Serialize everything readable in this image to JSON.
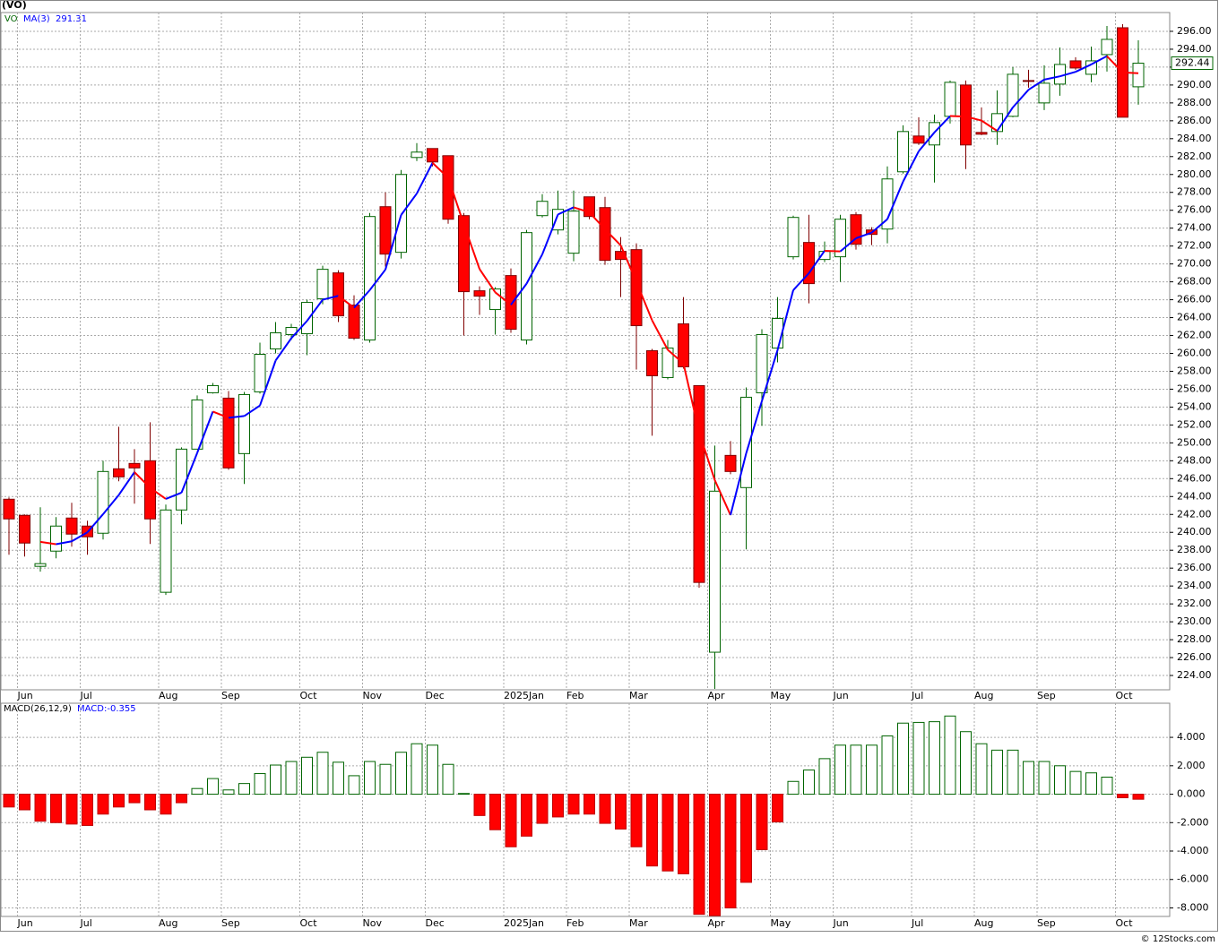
{
  "chart_data": [
    {
      "type": "candlestick",
      "title": "(VO)",
      "symbol": "VO",
      "categories": [
        null,
        "Jun",
        null,
        null,
        null,
        "Jul",
        null,
        null,
        null,
        null,
        "Aug",
        null,
        null,
        null,
        "Sep",
        null,
        null,
        null,
        null,
        "Oct",
        null,
        null,
        null,
        "Nov",
        null,
        null,
        null,
        "Dec",
        null,
        null,
        null,
        null,
        "2025Jan",
        null,
        null,
        null,
        "Feb",
        null,
        null,
        null,
        "Mar",
        null,
        null,
        null,
        null,
        "Apr",
        null,
        null,
        null,
        "May",
        null,
        null,
        null,
        "Jun",
        null,
        null,
        null,
        null,
        "Jul",
        null,
        null,
        null,
        "Aug",
        null,
        null,
        null,
        "Sep",
        null,
        null,
        null,
        null,
        "Oct",
        null
      ],
      "open": [
        243.7,
        241.9,
        236.2,
        237.9,
        241.6,
        240.7,
        239.9,
        247.1,
        247.7,
        248,
        233.3,
        242.5,
        249.3,
        255.6,
        255,
        248.8,
        255.7,
        260.5,
        262.1,
        262.2,
        266.1,
        269,
        265.4,
        261.5,
        276.4,
        271.3,
        281.9,
        282.9,
        282.1,
        275.4,
        267,
        264.9,
        268.7,
        261.5,
        275.4,
        273.8,
        271.2,
        277.5,
        276.3,
        271.4,
        271.6,
        260.3,
        257.3,
        263.3,
        256.4,
        226.6,
        248.6,
        245,
        255.6,
        260.6,
        270.8,
        272.4,
        270.5,
        270.8,
        275.5,
        273.8,
        273.9,
        280.3,
        284.3,
        283.3,
        286.5,
        290,
        284.7,
        284.8,
        286.5,
        290.5,
        288,
        290.1,
        292.7,
        291.2,
        293.4,
        296.4,
        289.8
      ],
      "high": [
        243.9,
        242,
        242.8,
        241.7,
        243.3,
        241.3,
        248,
        251.8,
        249.3,
        252.3,
        243.1,
        249.5,
        255.3,
        256.7,
        255.8,
        255.7,
        261.2,
        263.5,
        263.3,
        266,
        269.8,
        269.3,
        266.5,
        275.7,
        278,
        280.5,
        283.5,
        282.9,
        282.1,
        275.7,
        267.5,
        267.4,
        269.5,
        273.8,
        277.8,
        278.2,
        278.2,
        277.5,
        277.5,
        273,
        272.3,
        260.5,
        261.5,
        266.3,
        256.4,
        249.7,
        250.2,
        256.2,
        262.7,
        266.3,
        275.4,
        275.5,
        272.5,
        275.5,
        275.8,
        274.1,
        280.9,
        285.5,
        286.4,
        286.7,
        290.5,
        290.5,
        287.5,
        289.4,
        292,
        291.7,
        292.2,
        294.2,
        293.1,
        294.3,
        296.6,
        296.8,
        295
      ],
      "low": [
        237.5,
        237.3,
        235.6,
        237.1,
        238.4,
        237.5,
        239.2,
        245.7,
        243.2,
        238.7,
        233,
        240.9,
        249.3,
        255.5,
        247,
        245.4,
        255.5,
        260,
        261.5,
        259.8,
        265.5,
        263.5,
        261.5,
        261.2,
        269.7,
        270.6,
        281.5,
        280.9,
        274.5,
        262,
        264.3,
        262.1,
        262.3,
        261,
        275.2,
        273.3,
        270.3,
        275,
        269.9,
        266.3,
        258.2,
        250.8,
        257.1,
        258.3,
        233.8,
        222.5,
        246.5,
        238.1,
        251.9,
        259,
        270.5,
        265.6,
        270.2,
        268,
        271.6,
        272.1,
        272.3,
        280.1,
        283.3,
        279.1,
        285.7,
        280.6,
        284.4,
        283.3,
        286.4,
        289.7,
        287.2,
        288.8,
        291.7,
        290.3,
        291.5,
        286.4,
        287.8
      ],
      "close": [
        241.5,
        238.8,
        236.5,
        240.7,
        239.8,
        239.5,
        246.8,
        246.2,
        247.2,
        241.5,
        242.5,
        249.3,
        254.8,
        256.4,
        247.2,
        255.4,
        259.9,
        262.3,
        262.9,
        265.7,
        269.4,
        264.2,
        261.7,
        275.3,
        271.1,
        280,
        282.5,
        281.4,
        275,
        266.9,
        266.4,
        267.2,
        262.7,
        273.5,
        277,
        276.1,
        275.9,
        275.3,
        270.4,
        270.5,
        263.1,
        257.5,
        260.6,
        258.5,
        234.4,
        244.6,
        246.8,
        255.1,
        262.1,
        263.9,
        275.2,
        267.8,
        271.4,
        275,
        272.2,
        273.3,
        279.5,
        284.8,
        283.5,
        285.8,
        290.3,
        283.3,
        284.5,
        286.8,
        291.2,
        290.4,
        290.2,
        292.3,
        291.9,
        292.7,
        295.1,
        286.4,
        292.44
      ],
      "up_color": "#006400",
      "down_color": "#ff0000",
      "series": [
        {
          "name": "MA(3)",
          "up_color": "#0000ff",
          "down_color": "#ff0000",
          "values": [
            null,
            null,
            238.93,
            238.67,
            239,
            240,
            242.03,
            244.17,
            246.73,
            244.97,
            243.73,
            244.43,
            248.87,
            253.5,
            252.8,
            253,
            254.17,
            259.2,
            261.7,
            263.63,
            266,
            266.43,
            265.1,
            267.07,
            269.37,
            275.47,
            277.87,
            281.3,
            279.63,
            274.43,
            269.43,
            266.83,
            265.43,
            267.8,
            271.07,
            275.53,
            276.33,
            275.77,
            273.87,
            272.07,
            268,
            263.7,
            260.4,
            258.87,
            251.17,
            245.83,
            241.93,
            248.83,
            254.67,
            260.37,
            267.07,
            268.97,
            271.47,
            271.4,
            272.87,
            273.5,
            275,
            279.2,
            282.6,
            284.7,
            286.53,
            286.47,
            286.03,
            284.87,
            287.5,
            289.47,
            290.6,
            290.97,
            291.47,
            292.3,
            293.23,
            291.4,
            291.31
          ]
        }
      ],
      "ylim": [
        222.4,
        298.1
      ],
      "yticks": [
        {
          "value": 224,
          "label": "224.00"
        },
        {
          "value": 226,
          "label": "226.00"
        },
        {
          "value": 228,
          "label": "228.00"
        },
        {
          "value": 230,
          "label": "230.00"
        },
        {
          "value": 232,
          "label": "232.00"
        },
        {
          "value": 234,
          "label": "234.00"
        },
        {
          "value": 236,
          "label": "236.00"
        },
        {
          "value": 238,
          "label": "238.00"
        },
        {
          "value": 240,
          "label": "240.00"
        },
        {
          "value": 242,
          "label": "242.00"
        },
        {
          "value": 244,
          "label": "244.00"
        },
        {
          "value": 246,
          "label": "246.00"
        },
        {
          "value": 248,
          "label": "248.00"
        },
        {
          "value": 250,
          "label": "250.00"
        },
        {
          "value": 252,
          "label": "252.00"
        },
        {
          "value": 254,
          "label": "254.00"
        },
        {
          "value": 256,
          "label": "256.00"
        },
        {
          "value": 258,
          "label": "258.00"
        },
        {
          "value": 260,
          "label": "260.00"
        },
        {
          "value": 262,
          "label": "262.00"
        },
        {
          "value": 264,
          "label": "264.00"
        },
        {
          "value": 266,
          "label": "266.00"
        },
        {
          "value": 268,
          "label": "268.00"
        },
        {
          "value": 270,
          "label": "270.00"
        },
        {
          "value": 272,
          "label": "272.00"
        },
        {
          "value": 274,
          "label": "274.00"
        },
        {
          "value": 276,
          "label": "276.00"
        },
        {
          "value": 278,
          "label": "278.00"
        },
        {
          "value": 280,
          "label": "280.00"
        },
        {
          "value": 282,
          "label": "282.00"
        },
        {
          "value": 284,
          "label": "284.00"
        },
        {
          "value": 286,
          "label": "286.00"
        },
        {
          "value": 288,
          "label": "288.00"
        },
        {
          "value": 290,
          "label": "290.00"
        },
        {
          "value": 292,
          "label": "292.00"
        },
        {
          "value": 294,
          "label": "294.00"
        },
        {
          "value": 296,
          "label": "296.00"
        }
      ],
      "grid": true
    },
    {
      "type": "bar",
      "title": "MACD(26,12,9)",
      "indicator_label": "MACD:-0.355",
      "categories": [
        null,
        "Jun",
        null,
        null,
        null,
        "Jul",
        null,
        null,
        null,
        null,
        "Aug",
        null,
        null,
        null,
        "Sep",
        null,
        null,
        null,
        null,
        "Oct",
        null,
        null,
        null,
        "Nov",
        null,
        null,
        null,
        "Dec",
        null,
        null,
        null,
        null,
        "2025Jan",
        null,
        null,
        null,
        "Feb",
        null,
        null,
        null,
        "Mar",
        null,
        null,
        null,
        null,
        "Apr",
        null,
        null,
        null,
        "May",
        null,
        null,
        null,
        "Jun",
        null,
        null,
        null,
        null,
        "Jul",
        null,
        null,
        null,
        "Aug",
        null,
        null,
        null,
        "Sep",
        null,
        null,
        null,
        null,
        "Oct",
        null
      ],
      "values": [
        -0.9,
        -1.1,
        -1.9,
        -2.0,
        -2.1,
        -2.2,
        -1.4,
        -0.9,
        -0.6,
        -1.1,
        -1.4,
        -0.6,
        0.4,
        1.1,
        0.3,
        0.75,
        1.45,
        2.05,
        2.3,
        2.6,
        2.95,
        2.25,
        1.3,
        2.3,
        2.1,
        2.95,
        3.55,
        3.45,
        2.1,
        0.05,
        -1.5,
        -2.5,
        -3.7,
        -2.95,
        -2.05,
        -1.6,
        -1.4,
        -1.4,
        -2.05,
        -2.45,
        -3.7,
        -5.05,
        -5.4,
        -5.6,
        -8.45,
        -8.55,
        -8.0,
        -6.2,
        -3.9,
        -1.95,
        0.9,
        1.7,
        2.5,
        3.45,
        3.45,
        3.45,
        4.1,
        5.0,
        5.05,
        5.1,
        5.5,
        4.4,
        3.55,
        3.1,
        3.1,
        2.3,
        2.3,
        2.0,
        1.6,
        1.5,
        1.2,
        -0.25,
        -0.355
      ],
      "up_color": "#006400",
      "down_color": "#ff0000",
      "ylim": [
        -8.6,
        6.4
      ],
      "yticks": [
        {
          "value": 4,
          "label": "4.000"
        },
        {
          "value": 2,
          "label": "2.000"
        },
        {
          "value": 0,
          "label": "0.000"
        },
        {
          "value": -2,
          "label": "-2.000"
        },
        {
          "value": -4,
          "label": "-4.000"
        },
        {
          "value": -6,
          "label": "-6.000"
        },
        {
          "value": -8,
          "label": "-8.000"
        }
      ],
      "grid": true
    }
  ],
  "footer": "© 12Stocks.com"
}
